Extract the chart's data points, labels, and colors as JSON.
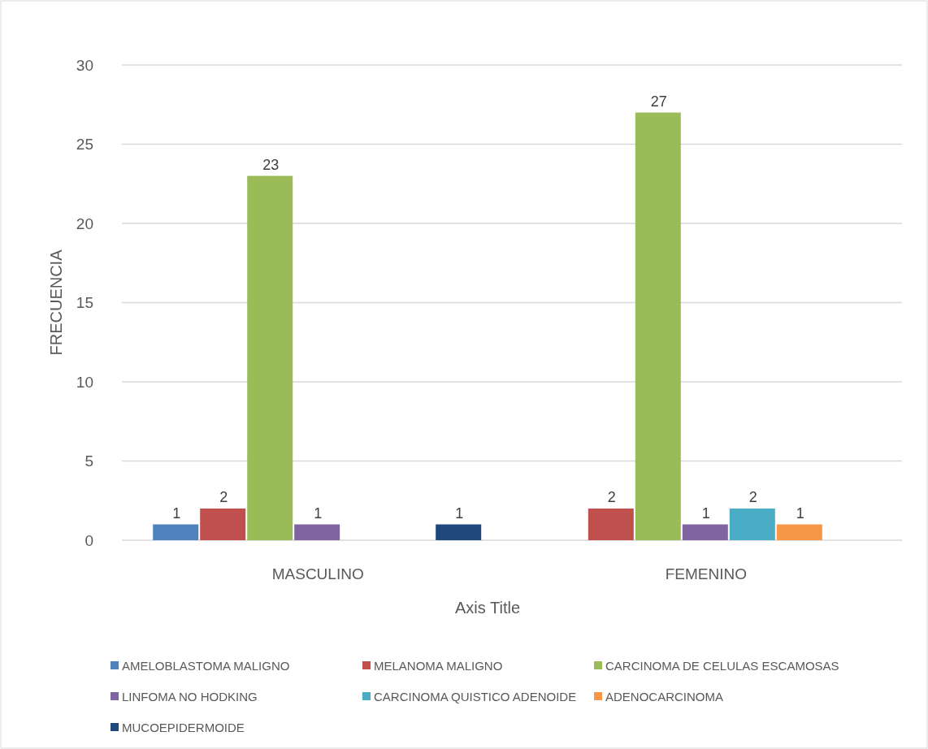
{
  "chart_data": {
    "type": "bar",
    "xlabel": "Axis Title",
    "ylabel": "FRECUENCIA",
    "categories": [
      "MASCULINO",
      "FEMENINO"
    ],
    "series": [
      {
        "name": "AMELOBLASTOMA MALIGNO",
        "color": "#4f81bd",
        "values": [
          1,
          null
        ]
      },
      {
        "name": "MELANOMA MALIGNO",
        "color": "#c0504d",
        "values": [
          2,
          2
        ]
      },
      {
        "name": "CARCINOMA DE CELULAS ESCAMOSAS",
        "color": "#9bbb59",
        "values": [
          23,
          27
        ]
      },
      {
        "name": "LINFOMA NO HODKING",
        "color": "#8064a2",
        "values": [
          1,
          1
        ]
      },
      {
        "name": "CARCINOMA QUISTICO ADENOIDE",
        "color": "#4bacc6",
        "values": [
          null,
          2
        ]
      },
      {
        "name": "ADENOCARCINOMA",
        "color": "#f79646",
        "values": [
          null,
          1
        ]
      },
      {
        "name": "MUCOEPIDERMOIDE",
        "color": "#1f497d",
        "values": [
          1,
          null
        ]
      }
    ],
    "ylim": [
      0,
      30
    ],
    "yticks": [
      0,
      5,
      10,
      15,
      20,
      25,
      30
    ],
    "grid": true,
    "data_labels": true,
    "legend": "bottom"
  }
}
